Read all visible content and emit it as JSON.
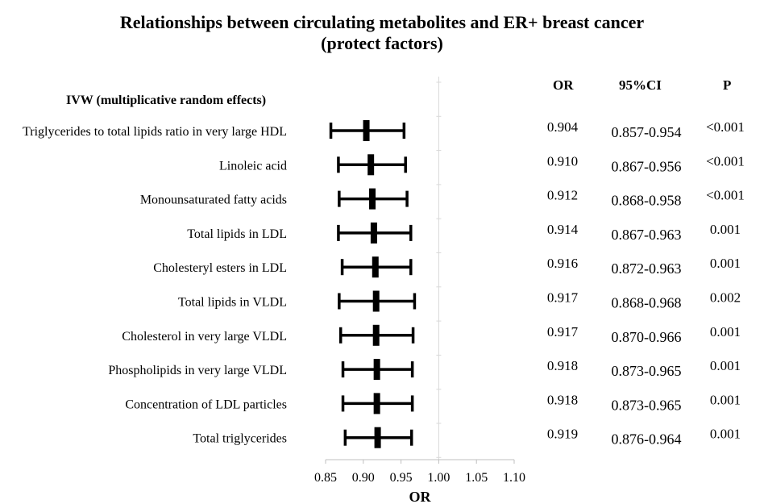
{
  "chart_data": {
    "type": "forest",
    "title_line1": "Relationships between circulating metabolites and ER+ breast cancer",
    "title_line2": "(protect factors)",
    "method_label": "IVW (multiplicative random effects)",
    "xlabel": "OR",
    "xlim": [
      0.85,
      1.1
    ],
    "xticks": [
      "0.85",
      "0.90",
      "0.95",
      "1.00",
      "1.05",
      "1.10"
    ],
    "reference_line": 1.0,
    "columns": [
      "OR",
      "95%CI",
      "P"
    ],
    "rows": [
      {
        "label": "Triglycerides to total lipids ratio in very large HDL",
        "or": 0.904,
        "lo": 0.857,
        "hi": 0.954,
        "or_text": "0.904",
        "ci_text": "0.857-0.954",
        "p_text": "<0.001"
      },
      {
        "label": "Linoleic acid",
        "or": 0.91,
        "lo": 0.867,
        "hi": 0.956,
        "or_text": "0.910",
        "ci_text": "0.867-0.956",
        "p_text": "<0.001"
      },
      {
        "label": "Monounsaturated fatty acids",
        "or": 0.912,
        "lo": 0.868,
        "hi": 0.958,
        "or_text": "0.912",
        "ci_text": "0.868-0.958",
        "p_text": "<0.001"
      },
      {
        "label": "Total lipids in LDL",
        "or": 0.914,
        "lo": 0.867,
        "hi": 0.963,
        "or_text": "0.914",
        "ci_text": "0.867-0.963",
        "p_text": "0.001"
      },
      {
        "label": "Cholesteryl esters in LDL",
        "or": 0.916,
        "lo": 0.872,
        "hi": 0.963,
        "or_text": "0.916",
        "ci_text": "0.872-0.963",
        "p_text": "0.001"
      },
      {
        "label": "Total lipids in VLDL",
        "or": 0.917,
        "lo": 0.868,
        "hi": 0.968,
        "or_text": "0.917",
        "ci_text": "0.868-0.968",
        "p_text": "0.002"
      },
      {
        "label": "Cholesterol in very large VLDL",
        "or": 0.917,
        "lo": 0.87,
        "hi": 0.966,
        "or_text": "0.917",
        "ci_text": "0.870-0.966",
        "p_text": "0.001"
      },
      {
        "label": "Phospholipids in very large VLDL",
        "or": 0.918,
        "lo": 0.873,
        "hi": 0.965,
        "or_text": "0.918",
        "ci_text": "0.873-0.965",
        "p_text": "0.001"
      },
      {
        "label": "Concentration of LDL particles",
        "or": 0.918,
        "lo": 0.873,
        "hi": 0.965,
        "or_text": "0.918",
        "ci_text": "0.873-0.965",
        "p_text": "0.001"
      },
      {
        "label": "Total triglycerides",
        "or": 0.919,
        "lo": 0.876,
        "hi": 0.964,
        "or_text": "0.919",
        "ci_text": "0.876-0.964",
        "p_text": "0.001"
      }
    ]
  }
}
